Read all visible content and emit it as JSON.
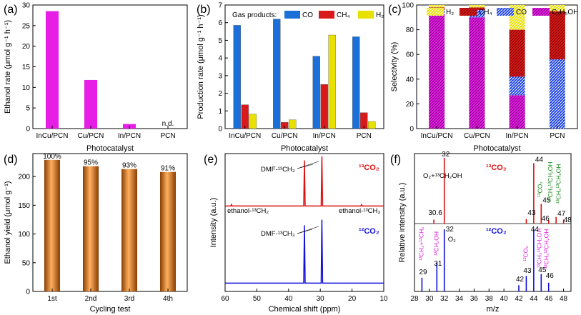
{
  "chart_data": [
    {
      "panel": "(a)",
      "type": "bar",
      "categories": [
        "InCu/PCN",
        "Cu/PCN",
        "In/PCN",
        "PCN"
      ],
      "values": [
        28.5,
        11.8,
        1.1,
        0
      ],
      "bar_labels": [
        "",
        "",
        "",
        "n.d."
      ],
      "color": "#e61ee6",
      "xlabel": "Photocatalyst",
      "ylabel": "Ethanol rate (μmol g⁻¹ h⁻¹)",
      "ylim": [
        0,
        30
      ],
      "yticks": [
        0,
        5,
        10,
        15,
        20,
        25,
        30
      ]
    },
    {
      "panel": "(b)",
      "type": "bar",
      "categories": [
        "InCu/PCN",
        "Cu/PCN",
        "In/PCN",
        "PCN"
      ],
      "legend_title": "Gas products:",
      "series": [
        {
          "name": "CO",
          "color": "#1a6fd8",
          "values": [
            5.85,
            6.2,
            4.1,
            5.2
          ]
        },
        {
          "name": "CH₄",
          "color": "#d91a1a",
          "values": [
            1.35,
            0.35,
            2.5,
            0.9
          ]
        },
        {
          "name": "H₂",
          "color": "#e8e000",
          "values": [
            0.82,
            0.5,
            5.3,
            0.4
          ]
        }
      ],
      "xlabel": "Photocatalyst",
      "ylabel": "Production rate (μmol g⁻¹ h⁻¹)",
      "ylim": [
        0,
        7
      ],
      "yticks": [
        0,
        1,
        2,
        3,
        4,
        5,
        6,
        7
      ]
    },
    {
      "panel": "(c)",
      "type": "bar",
      "stacked": true,
      "categories": [
        "InCu/PCN",
        "Cu/PCN",
        "In/PCN",
        "PCN"
      ],
      "legend": [
        "H₂",
        "CH₄",
        "CO",
        "C₂H₅OH"
      ],
      "series": [
        {
          "name": "C₂H₅OH",
          "color": "#e61ee6",
          "values": [
            93,
            90,
            27,
            0
          ]
        },
        {
          "name": "CO",
          "color": "#1a3fe6",
          "values": [
            3,
            6,
            15,
            56
          ]
        },
        {
          "name": "CH₄",
          "color": "#d91a1a",
          "values": [
            2,
            2,
            38,
            39
          ]
        },
        {
          "name": "H₂",
          "color": "#e8e000",
          "values": [
            2,
            2,
            20,
            5
          ]
        }
      ],
      "xlabel": "Photocatalyst",
      "ylabel": "Selectivity (%)",
      "ylim": [
        0,
        100
      ],
      "yticks": [
        0,
        20,
        40,
        60,
        80,
        100
      ]
    },
    {
      "panel": "(d)",
      "type": "bar",
      "categories": [
        "1st",
        "2nd",
        "3rd",
        "4th"
      ],
      "values": [
        229,
        218,
        213,
        208
      ],
      "bar_labels": [
        "100%",
        "95%",
        "93%",
        "91%"
      ],
      "color": "#e07b10",
      "xlabel": "Cycling test",
      "ylabel": "Ethanol yield (μmol g⁻¹)",
      "ylim": [
        0,
        240
      ],
      "yticks": [
        0,
        50,
        100,
        150,
        200
      ]
    },
    {
      "panel": "(e)",
      "type": "line",
      "xlabel": "Chemical shift (ppm)",
      "ylabel": "Intensity (a.u.)",
      "xlim": [
        60,
        10
      ],
      "xticks": [
        60,
        50,
        40,
        30,
        20,
        10
      ],
      "series": [
        {
          "name": "¹³CO₂",
          "color": "#e01010",
          "baseline": 0.62,
          "peaks": [
            {
              "x": 35,
              "h": 0.33
            },
            {
              "x": 29.5,
              "h": 0.36
            },
            {
              "x": 58,
              "h": 0.01
            },
            {
              "x": 17,
              "h": 0.01
            }
          ]
        },
        {
          "name": "¹²CO₂",
          "color": "#1010e0",
          "baseline": 0.06,
          "peaks": [
            {
              "x": 35,
              "h": 0.42
            },
            {
              "x": 29.5,
              "h": 0.46
            }
          ]
        }
      ],
      "annotations": [
        "DMF-¹³CH₃",
        "ethanol-¹³CH₂",
        "ethanol-¹³CH₃",
        "DMF-¹³CH₃"
      ],
      "labels_top": "¹³CO₂",
      "labels_bottom": "¹²CO₂"
    },
    {
      "panel": "(f)",
      "type": "bar",
      "subtype": "mass-spectrum",
      "xlabel": "m/z",
      "ylabel": "Relative intensity (a.u.)",
      "xlim": [
        28,
        49
      ],
      "xticks": [
        28,
        30,
        32,
        34,
        36,
        38,
        40,
        42,
        44,
        46,
        48
      ],
      "top_title": "¹³CO₂",
      "bottom_title": "¹²CO₂",
      "top_peaks": [
        {
          "mz": 30.6,
          "v": 0.06,
          "color": "#e01010"
        },
        {
          "mz": 32,
          "v": 1.0,
          "color": "#e01010"
        },
        {
          "mz": 43,
          "v": 0.07,
          "color": "#e01010"
        },
        {
          "mz": 44,
          "v": 0.92,
          "color": "#e01010"
        },
        {
          "mz": 45,
          "v": 0.3,
          "color": "#e01010"
        },
        {
          "mz": 46,
          "v": 0.05,
          "color": "#e01010"
        },
        {
          "mz": 47,
          "v": 0.1,
          "color": "#e01010"
        },
        {
          "mz": 48,
          "v": 0.06,
          "color": "#e01010"
        }
      ],
      "bottom_peaks": [
        {
          "mz": 29,
          "v": 0.22,
          "color": "#1010e0"
        },
        {
          "mz": 31,
          "v": 0.47,
          "color": "#1010e0"
        },
        {
          "mz": 32,
          "v": 1.0,
          "color": "#1010e0"
        },
        {
          "mz": 42,
          "v": 0.1,
          "color": "#1010e0"
        },
        {
          "mz": 43,
          "v": 0.25,
          "color": "#1010e0"
        },
        {
          "mz": 44,
          "v": 1.0,
          "color": "#1010e0"
        },
        {
          "mz": 45,
          "v": 0.28,
          "color": "#1010e0"
        },
        {
          "mz": 46,
          "v": 0.14,
          "color": "#1010e0"
        }
      ],
      "annotations_top": [
        "O₂+¹³CH₂OH",
        "¹³CO₂",
        "¹³CH₃¹³CH₂OH",
        "¹³CH₃¹³CH₂OH"
      ],
      "annotations_bottom": [
        "O₂",
        "¹³CH₃+¹²CH₂",
        "¹²CH₂OH",
        "¹²CO₂",
        "¹²CH₃¹²CH₂OH",
        "¹²CH₃¹²CH₂OH"
      ]
    }
  ]
}
